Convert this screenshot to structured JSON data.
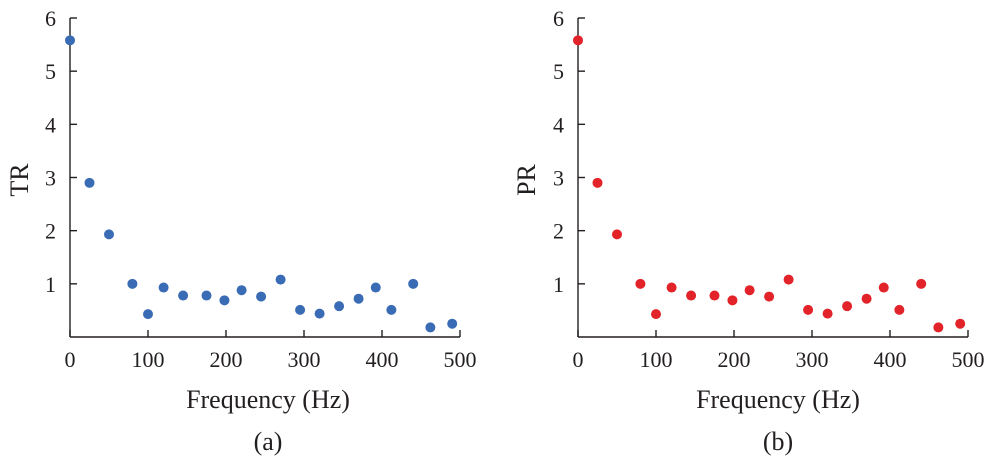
{
  "chart_data": [
    {
      "type": "scatter",
      "caption": "(a)",
      "xlabel": "Frequency (Hz)",
      "ylabel": "TR",
      "xlim": [
        0,
        500
      ],
      "ylim": [
        0,
        6
      ],
      "xticks": [
        0,
        100,
        200,
        300,
        400,
        500
      ],
      "yticks": [
        1,
        2,
        3,
        4,
        5,
        6
      ],
      "grid": false,
      "color": "#3a6cb5",
      "series": [
        {
          "x": [
            0,
            25,
            50,
            80,
            100,
            120,
            145,
            175,
            198,
            220,
            245,
            270,
            295,
            320,
            345,
            370,
            392,
            412,
            440,
            462,
            490
          ],
          "y": [
            5.58,
            2.9,
            1.93,
            1.0,
            0.43,
            0.93,
            0.78,
            0.78,
            0.69,
            0.88,
            0.76,
            1.08,
            0.51,
            0.44,
            0.58,
            0.72,
            0.93,
            0.51,
            1.0,
            0.18,
            0.25
          ]
        }
      ]
    },
    {
      "type": "scatter",
      "caption": "(b)",
      "xlabel": "Frequency (Hz)",
      "ylabel": "PR",
      "xlim": [
        0,
        500
      ],
      "ylim": [
        0,
        6
      ],
      "xticks": [
        0,
        100,
        200,
        300,
        400,
        500
      ],
      "yticks": [
        1,
        2,
        3,
        4,
        5,
        6
      ],
      "grid": false,
      "color": "#e2232a",
      "series": [
        {
          "x": [
            0,
            25,
            50,
            80,
            100,
            120,
            145,
            175,
            198,
            220,
            245,
            270,
            295,
            320,
            345,
            370,
            392,
            412,
            440,
            462,
            490
          ],
          "y": [
            5.58,
            2.9,
            1.93,
            1.0,
            0.43,
            0.93,
            0.78,
            0.78,
            0.69,
            0.88,
            0.76,
            1.08,
            0.51,
            0.44,
            0.58,
            0.72,
            0.93,
            0.51,
            1.0,
            0.18,
            0.25
          ]
        }
      ]
    }
  ]
}
